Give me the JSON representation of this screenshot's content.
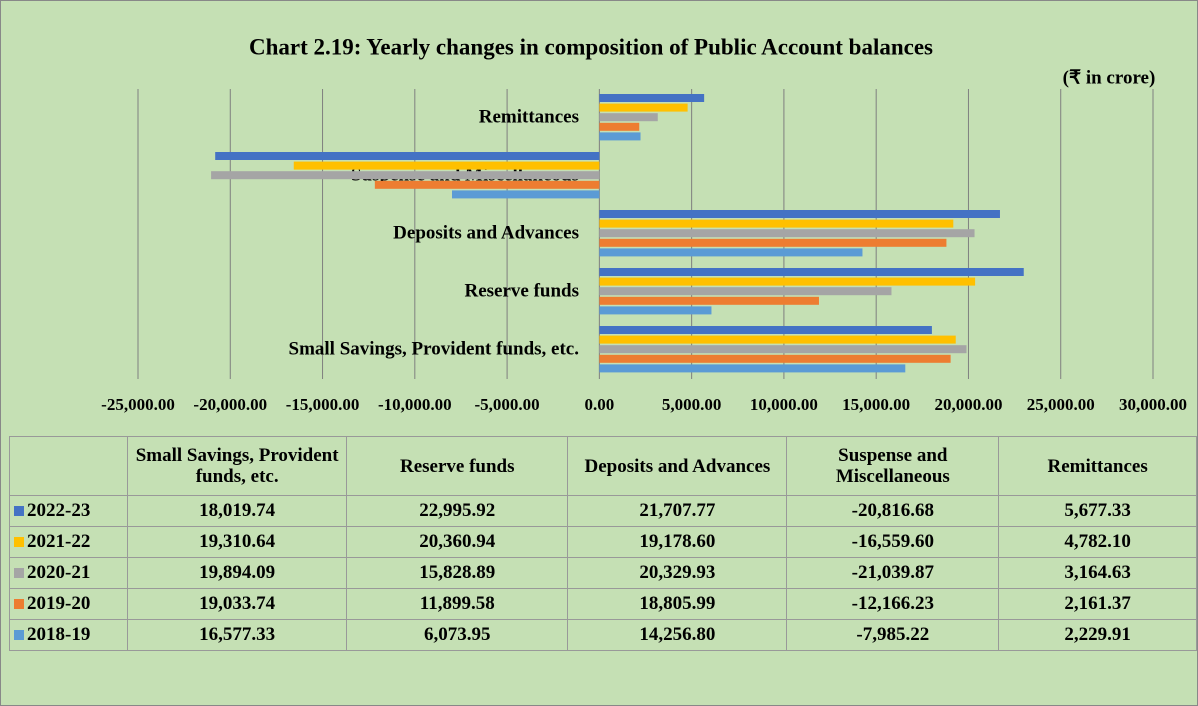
{
  "chart_data": {
    "type": "bar",
    "orientation": "horizontal",
    "title": "Chart 2.19: Yearly changes in composition of Public Account balances",
    "subtitle": "(₹ in crore)",
    "categories": [
      "Small Savings, Provident funds, etc.",
      "Reserve funds",
      "Deposits and Advances",
      "Suspense and Miscellaneous",
      "Remittances"
    ],
    "series": [
      {
        "name": "2022-23",
        "color": "#4472c4",
        "values": [
          18019.74,
          22995.92,
          21707.77,
          -20816.68,
          5677.33
        ],
        "value_labels": [
          "18,019.74",
          "22,995.92",
          "21,707.77",
          "-20,816.68",
          "5,677.33"
        ]
      },
      {
        "name": "2021-22",
        "color": "#ffc000",
        "values": [
          19310.64,
          20360.94,
          19178.6,
          -16559.6,
          4782.1
        ],
        "value_labels": [
          "19,310.64",
          "20,360.94",
          "19,178.60",
          "-16,559.60",
          "4,782.10"
        ]
      },
      {
        "name": "2020-21",
        "color": "#a5a5a5",
        "values": [
          19894.09,
          15828.89,
          20329.93,
          -21039.87,
          3164.63
        ],
        "value_labels": [
          "19,894.09",
          "15,828.89",
          "20,329.93",
          "-21,039.87",
          "3,164.63"
        ]
      },
      {
        "name": "2019-20",
        "color": "#ed7d31",
        "values": [
          19033.74,
          11899.58,
          18805.99,
          -12166.23,
          2161.37
        ],
        "value_labels": [
          "19,033.74",
          "11,899.58",
          "18,805.99",
          "-12,166.23",
          "2,161.37"
        ]
      },
      {
        "name": "2018-19",
        "color": "#5b9bd5",
        "values": [
          16577.33,
          6073.95,
          14256.8,
          -7985.22,
          2229.91
        ],
        "value_labels": [
          "16,577.33",
          "6,073.95",
          "14,256.80",
          "-7,985.22",
          "2,229.91"
        ]
      }
    ],
    "xlim": [
      -25000,
      30000
    ],
    "xticks": [
      {
        "value": -25000,
        "label": "-25,000.00"
      },
      {
        "value": -20000,
        "label": "-20,000.00"
      },
      {
        "value": -15000,
        "label": "-15,000.00"
      },
      {
        "value": -10000,
        "label": "-10,000.00"
      },
      {
        "value": -5000,
        "label": "-5,000.00"
      },
      {
        "value": 0,
        "label": "0.00"
      },
      {
        "value": 5000,
        "label": "5,000.00"
      },
      {
        "value": 10000,
        "label": "10,000.00"
      },
      {
        "value": 15000,
        "label": "15,000.00"
      },
      {
        "value": 20000,
        "label": "20,000.00"
      },
      {
        "value": 25000,
        "label": "25,000.00"
      },
      {
        "value": 30000,
        "label": "30,000.00"
      }
    ],
    "grid": true,
    "legend": "table"
  }
}
